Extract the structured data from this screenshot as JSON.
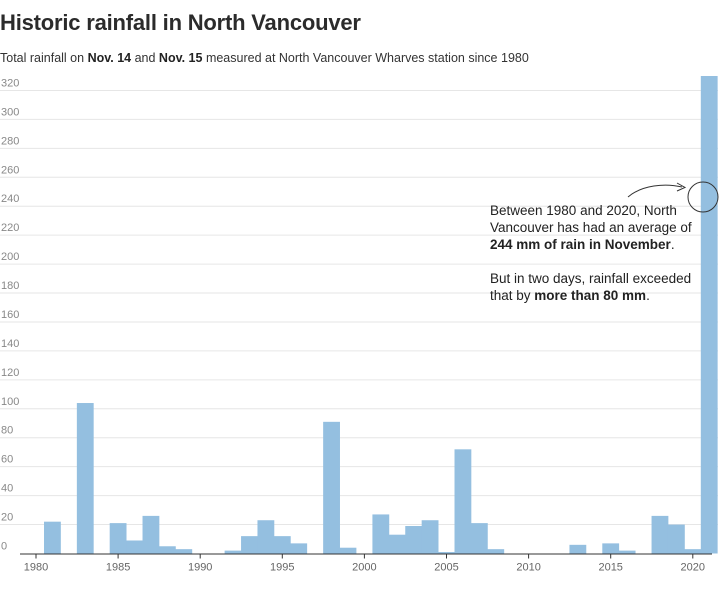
{
  "header": {
    "title": "Historic rainfall in North Vancouver",
    "subtitle_parts": {
      "p1": "Total rainfall on ",
      "b1": "Nov. 14",
      "p2": " and ",
      "b2": "Nov. 15",
      "p3": " measured at North Vancouver Wharves station since 1980"
    }
  },
  "annotation": {
    "para1": {
      "t1": "Between 1980 and 2020, North Vancouver has had an average of ",
      "b1": "244 mm of rain in November",
      "t2": "."
    },
    "para2": {
      "t1": "But in two days, rainfall exceeded that by ",
      "b1": "more than 80 mm",
      "t2": "."
    }
  },
  "chart_data": {
    "type": "bar",
    "x": [
      1980,
      1981,
      1982,
      1983,
      1984,
      1985,
      1986,
      1987,
      1988,
      1989,
      1990,
      1991,
      1992,
      1993,
      1994,
      1995,
      1996,
      1997,
      1998,
      1999,
      2000,
      2001,
      2002,
      2003,
      2004,
      2005,
      2006,
      2007,
      2008,
      2009,
      2010,
      2011,
      2012,
      2013,
      2014,
      2015,
      2016,
      2017,
      2018,
      2019,
      2020,
      2021
    ],
    "values": [
      0,
      22,
      0,
      104,
      0,
      21,
      9,
      26,
      5,
      3,
      0,
      0,
      2,
      12,
      23,
      12,
      7,
      0,
      91,
      4,
      0,
      27,
      13,
      19,
      23,
      1,
      72,
      21,
      3,
      0,
      0,
      0,
      0,
      6,
      0,
      7,
      2,
      0,
      26,
      20,
      3,
      330
    ],
    "x_ticks": [
      1980,
      1985,
      1990,
      1995,
      2000,
      2005,
      2010,
      2015,
      2020
    ],
    "y_ticks": [
      0,
      20,
      40,
      60,
      80,
      100,
      120,
      140,
      160,
      180,
      200,
      220,
      240,
      260,
      280,
      300,
      320
    ],
    "ylim": [
      0,
      330
    ],
    "bar_color": "#94bfe0",
    "grid": true
  }
}
